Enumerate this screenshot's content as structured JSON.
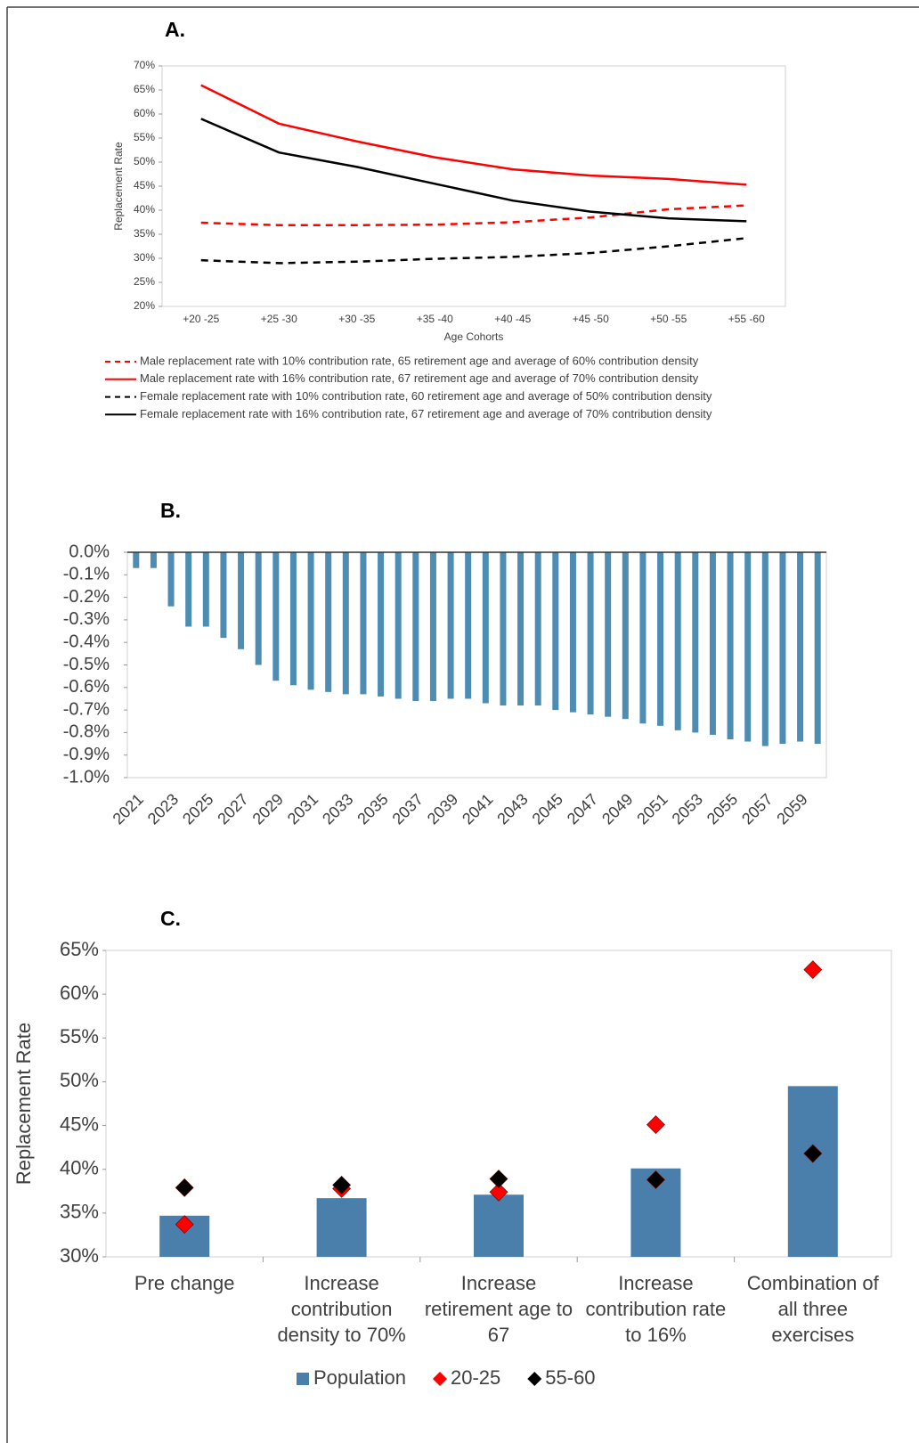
{
  "chart_data": [
    {
      "type": "line",
      "title": "A.",
      "y_label": "Replacement Rate",
      "x_label": "Age Cohorts",
      "categories": [
        "+20 -25",
        "+25 -30",
        "+30 -35",
        "+35 -40",
        "+40 -45",
        "+45 -50",
        "+50 -55",
        "+55 -60"
      ],
      "ylim": [
        20,
        70
      ],
      "yticks": [
        {
          "value": 20,
          "label": "20%"
        },
        {
          "value": 25,
          "label": "25%"
        },
        {
          "value": 30,
          "label": "30%"
        },
        {
          "value": 35,
          "label": "35%"
        },
        {
          "value": 40,
          "label": "40%"
        },
        {
          "value": 45,
          "label": "45%"
        },
        {
          "value": 50,
          "label": "50%"
        },
        {
          "value": 55,
          "label": "55%"
        },
        {
          "value": 60,
          "label": "60%"
        },
        {
          "value": 65,
          "label": "65%"
        },
        {
          "value": 70,
          "label": "70%"
        }
      ],
      "legend": "bottom",
      "series": [
        {
          "name": "Male replacement rate with 10% contribution rate, 65 retirement age and average of 60% contribution density",
          "color": "#ff0000",
          "dashed": true,
          "values": [
            37.4,
            36.9,
            36.9,
            37.0,
            37.5,
            38.5,
            40.2,
            41.0
          ]
        },
        {
          "name": "Male replacement rate with 16% contribution rate, 67 retirement age and average of 70% contribution density",
          "color": "#ff0000",
          "dashed": false,
          "values": [
            66.0,
            58.0,
            54.3,
            51.0,
            48.5,
            47.2,
            46.5,
            45.3
          ]
        },
        {
          "name": "Female replacement rate with 10% contribution rate, 60 retirement age and average of 50% contribution density",
          "color": "#000000",
          "dashed": true,
          "values": [
            29.6,
            29.0,
            29.3,
            29.9,
            30.3,
            31.1,
            32.5,
            34.2
          ]
        },
        {
          "name": "Female replacement rate with 16% contribution rate, 67 retirement age and average of 70% contribution density",
          "color": "#000000",
          "dashed": false,
          "values": [
            59.0,
            52.0,
            49.0,
            45.5,
            42.0,
            39.7,
            38.3,
            37.7
          ]
        }
      ]
    },
    {
      "type": "bar",
      "title": "B.",
      "categories": [
        "2021",
        null,
        "2023",
        null,
        "2025",
        null,
        "2027",
        null,
        "2029",
        null,
        "2031",
        null,
        "2033",
        null,
        "2035",
        null,
        "2037",
        null,
        "2039",
        null,
        "2041",
        null,
        "2043",
        null,
        "2045",
        null,
        "2047",
        null,
        "2049",
        null,
        "2051",
        null,
        "2053",
        null,
        "2055",
        null,
        "2057",
        null,
        "2059",
        null
      ],
      "values": [
        -0.07,
        -0.07,
        -0.24,
        -0.33,
        -0.33,
        -0.38,
        -0.43,
        -0.5,
        -0.57,
        -0.59,
        -0.61,
        -0.62,
        -0.63,
        -0.63,
        -0.64,
        -0.65,
        -0.66,
        -0.66,
        -0.65,
        -0.65,
        -0.67,
        -0.68,
        -0.68,
        -0.68,
        -0.7,
        -0.71,
        -0.72,
        -0.73,
        -0.74,
        -0.76,
        -0.77,
        -0.79,
        -0.8,
        -0.81,
        -0.83,
        -0.84,
        -0.86,
        -0.85,
        -0.84,
        -0.85
      ],
      "color": "#4d8db4",
      "ylim": [
        -1.0,
        0.0
      ],
      "yticks": [
        {
          "value": -1.0,
          "label": "-1.0%"
        },
        {
          "value": -0.9,
          "label": "-0.9%"
        },
        {
          "value": -0.8,
          "label": "-0.8%"
        },
        {
          "value": -0.7,
          "label": "-0.7%"
        },
        {
          "value": -0.6,
          "label": "-0.6%"
        },
        {
          "value": -0.5,
          "label": "-0.5%"
        },
        {
          "value": -0.4,
          "label": "-0.4%"
        },
        {
          "value": -0.3,
          "label": "-0.3%"
        },
        {
          "value": -0.2,
          "label": "-0.2%"
        },
        {
          "value": -0.1,
          "label": "-0.1%"
        },
        {
          "value": 0.0,
          "label": "0.0%"
        }
      ]
    },
    {
      "type": "combo",
      "title": "C.",
      "y_label": "Replacement Rate",
      "categories": [
        "Pre change",
        "Increase contribution density to 70%",
        "Increase retirement age to 67",
        "Increase contribution rate to 16%",
        "Combination of all three exercises"
      ],
      "ylim": [
        30,
        65
      ],
      "yticks": [
        {
          "value": 30,
          "label": "30%"
        },
        {
          "value": 35,
          "label": "35%"
        },
        {
          "value": 40,
          "label": "40%"
        },
        {
          "value": 45,
          "label": "45%"
        },
        {
          "value": 50,
          "label": "50%"
        },
        {
          "value": 55,
          "label": "55%"
        },
        {
          "value": 60,
          "label": "60%"
        },
        {
          "value": 65,
          "label": "65%"
        }
      ],
      "legend": "bottom",
      "series": [
        {
          "name": "Population",
          "type": "bar",
          "color": "#4a7eab",
          "values": [
            34.7,
            36.7,
            37.1,
            40.1,
            49.5
          ]
        },
        {
          "name": "20-25",
          "type": "scatter",
          "marker": "diamond",
          "color": "#ff0000",
          "values": [
            33.7,
            37.8,
            37.4,
            45.1,
            62.8
          ]
        },
        {
          "name": "55-60",
          "type": "scatter",
          "marker": "diamond",
          "color": "#000000",
          "values": [
            37.9,
            38.2,
            38.9,
            38.8,
            41.8
          ]
        }
      ]
    }
  ]
}
